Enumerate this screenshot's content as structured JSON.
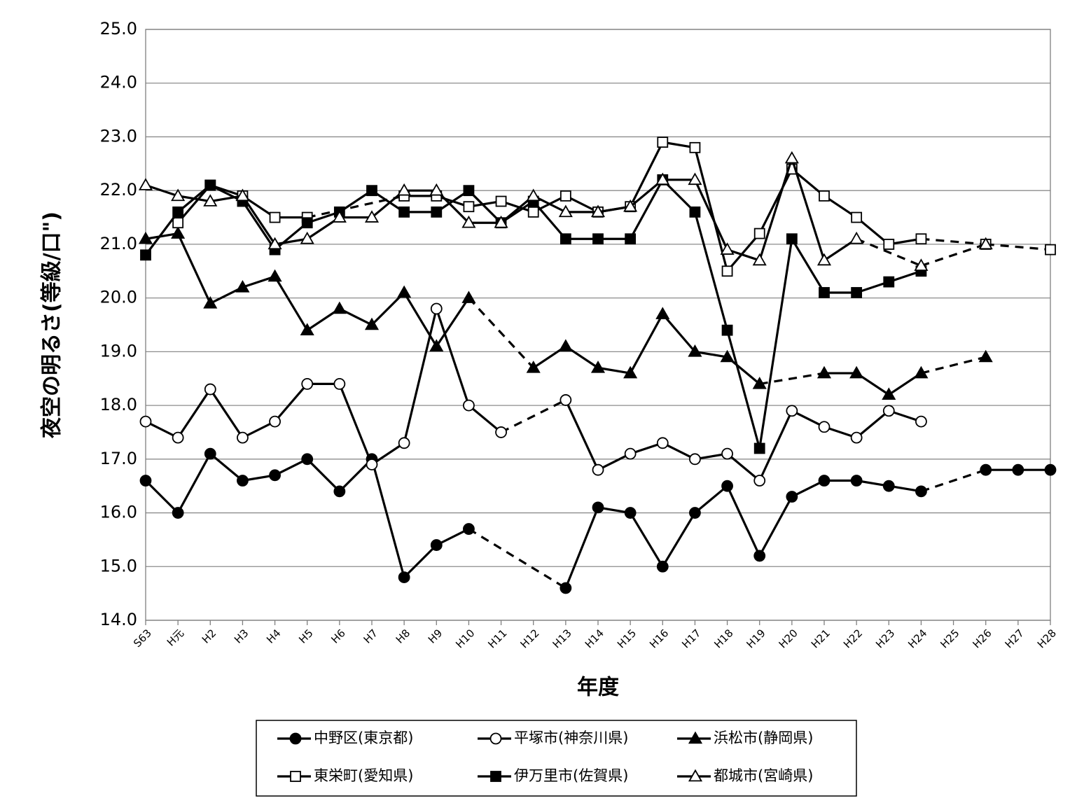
{
  "chart_data": {
    "type": "line",
    "xlabel": "年度",
    "ylabel": "夜空の明るさ(等級/口\")",
    "ylim": [
      14.0,
      25.0
    ],
    "ytick_labels": [
      "14.0",
      "15.0",
      "16.0",
      "17.0",
      "18.0",
      "19.0",
      "20.0",
      "21.0",
      "22.0",
      "23.0",
      "24.0",
      "25.0"
    ],
    "categories": [
      "S63",
      "H元",
      "H2",
      "H3",
      "H4",
      "H5",
      "H6",
      "H7",
      "H8",
      "H9",
      "H10",
      "H11",
      "H12",
      "H13",
      "H14",
      "H15",
      "H16",
      "H17",
      "H18",
      "H19",
      "H20",
      "H21",
      "H22",
      "H23",
      "H24",
      "H25",
      "H26",
      "H27",
      "H28"
    ],
    "grid": "horizontal",
    "legend_position": "bottom",
    "series": [
      {
        "name": "中野区(東京都)",
        "marker": "filled-circle",
        "values": [
          16.6,
          16.0,
          17.1,
          16.6,
          16.7,
          17.0,
          16.4,
          17.0,
          14.8,
          15.4,
          15.7,
          null,
          null,
          14.6,
          16.1,
          16.0,
          15.0,
          16.0,
          16.5,
          15.2,
          16.3,
          16.6,
          16.6,
          16.5,
          16.4,
          null,
          16.8,
          16.8,
          16.8
        ]
      },
      {
        "name": "平塚市(神奈川県)",
        "marker": "open-circle",
        "values": [
          17.7,
          17.4,
          18.3,
          17.4,
          17.7,
          18.4,
          18.4,
          16.9,
          17.3,
          19.8,
          18.0,
          17.5,
          null,
          18.1,
          16.8,
          17.1,
          17.3,
          17.0,
          17.1,
          16.6,
          17.9,
          17.6,
          17.4,
          17.9,
          17.7,
          null,
          null,
          null,
          null
        ]
      },
      {
        "name": "浜松市(静岡県)",
        "marker": "filled-triangle",
        "values": [
          21.1,
          21.2,
          19.9,
          20.2,
          20.4,
          19.4,
          19.8,
          19.5,
          20.1,
          19.1,
          20.0,
          null,
          18.7,
          19.1,
          18.7,
          18.6,
          19.7,
          19.0,
          18.9,
          18.4,
          null,
          18.6,
          18.6,
          18.2,
          18.6,
          null,
          18.9,
          null,
          null
        ]
      },
      {
        "name": "東栄町(愛知県)",
        "marker": "open-square",
        "values": [
          null,
          21.4,
          22.1,
          21.9,
          21.5,
          21.5,
          null,
          null,
          21.9,
          21.9,
          21.7,
          21.8,
          21.6,
          21.9,
          21.6,
          21.7,
          22.9,
          22.8,
          20.5,
          21.2,
          22.4,
          21.9,
          21.5,
          21.0,
          21.1,
          null,
          21.0,
          null,
          20.9
        ]
      },
      {
        "name": "伊万里市(佐賀県)",
        "marker": "filled-square",
        "values": [
          20.8,
          21.6,
          22.1,
          21.8,
          20.9,
          21.4,
          21.6,
          22.0,
          21.6,
          21.6,
          22.0,
          21.4,
          21.8,
          21.1,
          21.1,
          21.1,
          22.2,
          21.6,
          19.4,
          17.2,
          21.1,
          20.1,
          20.1,
          20.3,
          20.5,
          null,
          null,
          null,
          null
        ]
      },
      {
        "name": "都城市(宮崎県)",
        "marker": "open-triangle",
        "values": [
          22.1,
          21.9,
          21.8,
          21.9,
          21.0,
          21.1,
          21.5,
          21.5,
          22.0,
          22.0,
          21.4,
          21.4,
          21.9,
          21.6,
          21.6,
          21.7,
          22.2,
          22.2,
          20.9,
          20.7,
          22.6,
          20.7,
          21.1,
          null,
          20.6,
          null,
          21.0,
          null,
          null
        ]
      }
    ]
  }
}
